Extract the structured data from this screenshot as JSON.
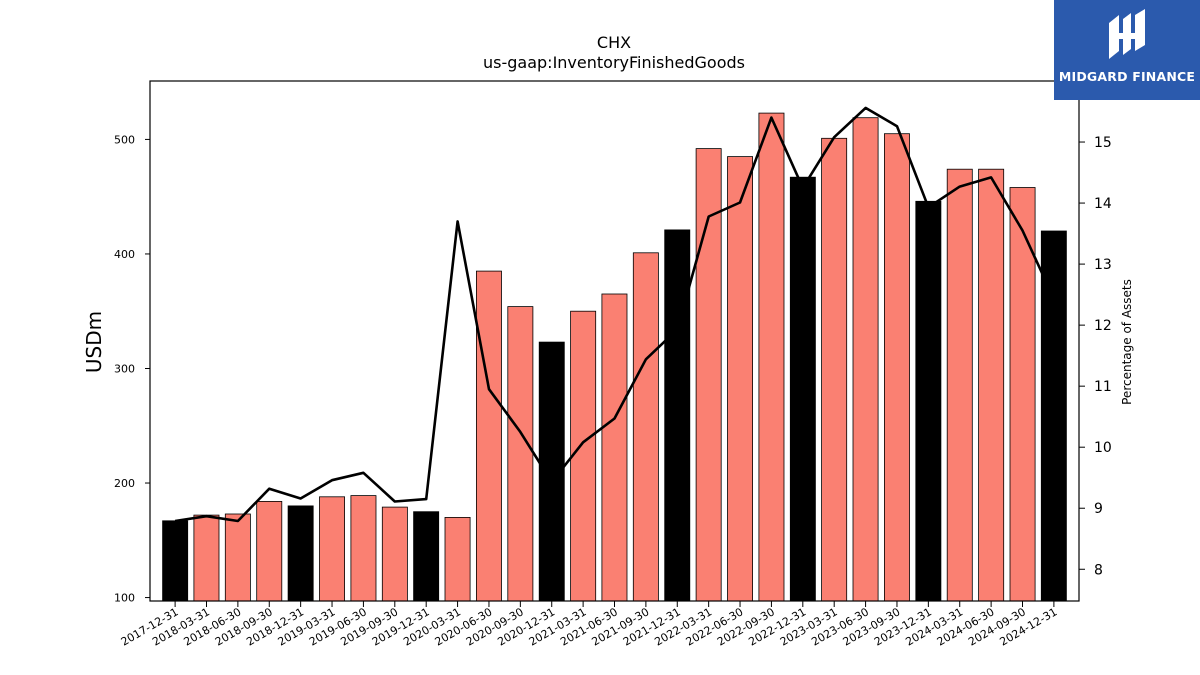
{
  "logo": {
    "text": "MIDGARD FINANCE",
    "mark": "mh-monogram-icon",
    "background": "#2b5aad"
  },
  "chart_data": {
    "type": "bar",
    "title": "CHX",
    "subtitle": "us-gaap:InventoryFinishedGoods",
    "ylabel": "USDm",
    "y2label": "Percentage of Assets",
    "ylim": [
      97,
      551
    ],
    "y2lim": [
      7.48,
      16.0
    ],
    "yticks": [
      100,
      200,
      300,
      400,
      500
    ],
    "y2ticks": [
      8,
      9,
      10,
      11,
      12,
      13,
      14,
      15
    ],
    "colors": {
      "year_end": "#000000",
      "quarter": "#fa8072",
      "line": "#000000"
    },
    "categories": [
      "2017-12-31",
      "2018-03-31",
      "2018-06-30",
      "2018-09-30",
      "2018-12-31",
      "2019-03-31",
      "2019-06-30",
      "2019-09-30",
      "2019-12-31",
      "2020-03-31",
      "2020-06-30",
      "2020-09-30",
      "2020-12-31",
      "2021-03-31",
      "2021-06-30",
      "2021-09-30",
      "2021-12-31",
      "2022-03-31",
      "2022-06-30",
      "2022-09-30",
      "2022-12-31",
      "2023-03-31",
      "2023-06-30",
      "2023-09-30",
      "2023-12-31",
      "2024-03-31",
      "2024-06-30",
      "2024-09-30",
      "2024-12-31"
    ],
    "series": [
      {
        "values": [
          167,
          172,
          173,
          184,
          180,
          188,
          189,
          179,
          175,
          170,
          385,
          354,
          323,
          350,
          365,
          401,
          421,
          492,
          485,
          523,
          467,
          501,
          519,
          505,
          446,
          474,
          474,
          458,
          420
        ]
      },
      {
        "axis": "right",
        "type": "line",
        "values": [
          8.79,
          8.87,
          8.79,
          9.32,
          9.16,
          9.46,
          9.58,
          9.11,
          9.15,
          13.7,
          10.95,
          10.25,
          9.43,
          10.08,
          10.47,
          11.44,
          11.93,
          13.78,
          14.01,
          15.4,
          14.25,
          15.08,
          15.56,
          15.26,
          13.93,
          14.27,
          14.42,
          13.55,
          12.43
        ]
      }
    ],
    "legend": "none",
    "grid": false
  }
}
